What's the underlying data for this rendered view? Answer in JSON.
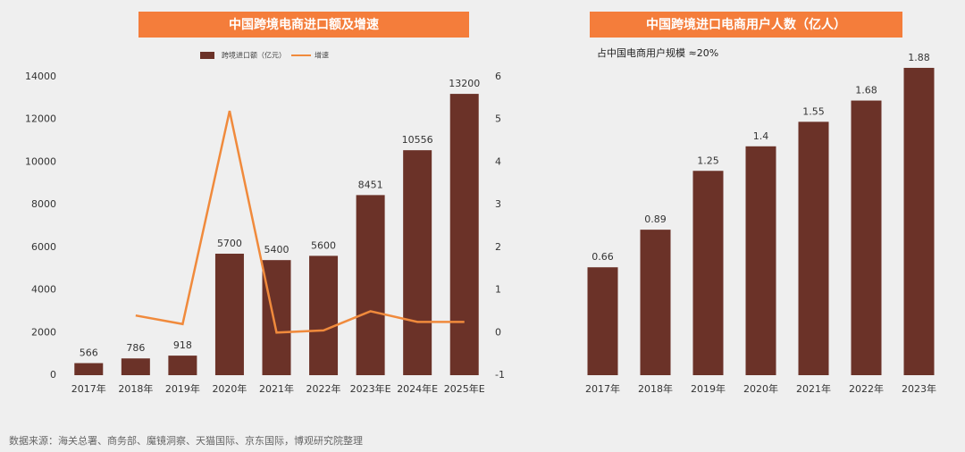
{
  "chart_data": [
    {
      "type": "bar",
      "title": "中国跨境电商进口额及增速",
      "categories": [
        "2017年",
        "2018年",
        "2019年",
        "2020年",
        "2021年",
        "2022年",
        "2023年E",
        "2024年E",
        "2025年E"
      ],
      "series": [
        {
          "name": "跨境进口额（亿元）",
          "color": "#6b3228",
          "values": [
            566,
            786,
            918,
            5700,
            5400,
            5600,
            8451,
            10556,
            13200
          ]
        },
        {
          "name": "增速",
          "color": "#f08a3c",
          "type": "line",
          "axis": "y2",
          "values": [
            null,
            0.4,
            0.2,
            5.2,
            0,
            0.05,
            0.5,
            0.25,
            0.25
          ]
        }
      ],
      "ylim": [
        0,
        14000
      ],
      "yticks": [
        0,
        2000,
        4000,
        6000,
        8000,
        10000,
        12000,
        14000
      ],
      "y2lim": [
        -1,
        6
      ],
      "y2ticks": [
        -1,
        0,
        1,
        2,
        3,
        4,
        5,
        6
      ],
      "data_labels": true,
      "legend": "top"
    },
    {
      "type": "bar",
      "title": "中国跨境进口电商用户人数（亿人）",
      "annotation": "占中国电商用户规模 ≈20%",
      "categories": [
        "2017年",
        "2018年",
        "2019年",
        "2020年",
        "2021年",
        "2022年",
        "2023年"
      ],
      "values": [
        0.66,
        0.89,
        1.25,
        1.4,
        1.55,
        1.68,
        1.88
      ],
      "color": "#6b3228",
      "ylim": [
        0,
        2
      ],
      "data_labels": true
    }
  ],
  "source": "数据来源：海关总署、商务部、魔镜洞察、天猫国际、京东国际，博观研究院整理"
}
